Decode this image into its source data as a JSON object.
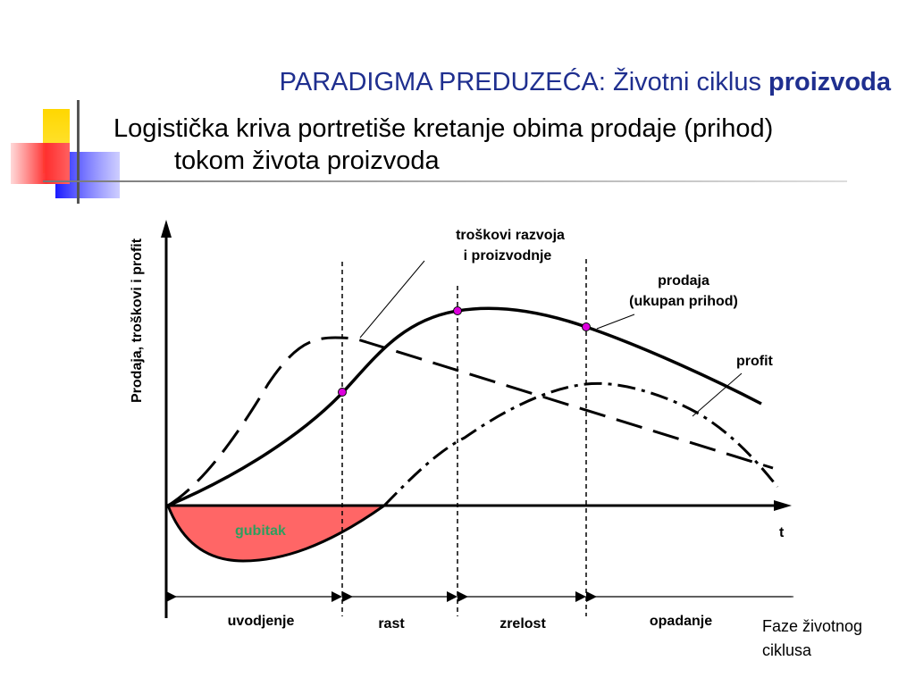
{
  "title": {
    "main": "PARADIGMA PREDUZEĆA: Životni ciklus ",
    "bold": "proizvoda"
  },
  "subtitle": {
    "line1": "Logistička kriva portretiše kretanje obima prodaje (prihod)",
    "line2": "tokom života proizvoda"
  },
  "diagram": {
    "y_axis_label": "Prodaja, troškovi i profit",
    "x_axis_label": "t",
    "loss_label": "gubitak",
    "costs_label_1": "troškovi razvoja",
    "costs_label_2": "i proizvodnje",
    "sales_label_1": "prodaja",
    "sales_label_2": "(ukupan prihod)",
    "profit_label": "profit",
    "phases": [
      "uvodjenje",
      "rast",
      "zrelost",
      "opadanje"
    ],
    "phases_caption_1": "Faze životnog",
    "phases_caption_2": "ciklusa",
    "colors": {
      "loss_fill": "#ff6666",
      "loss_text": "#2e9e5e",
      "marker": "#dd00dd",
      "title": "#1f2f8f"
    }
  }
}
